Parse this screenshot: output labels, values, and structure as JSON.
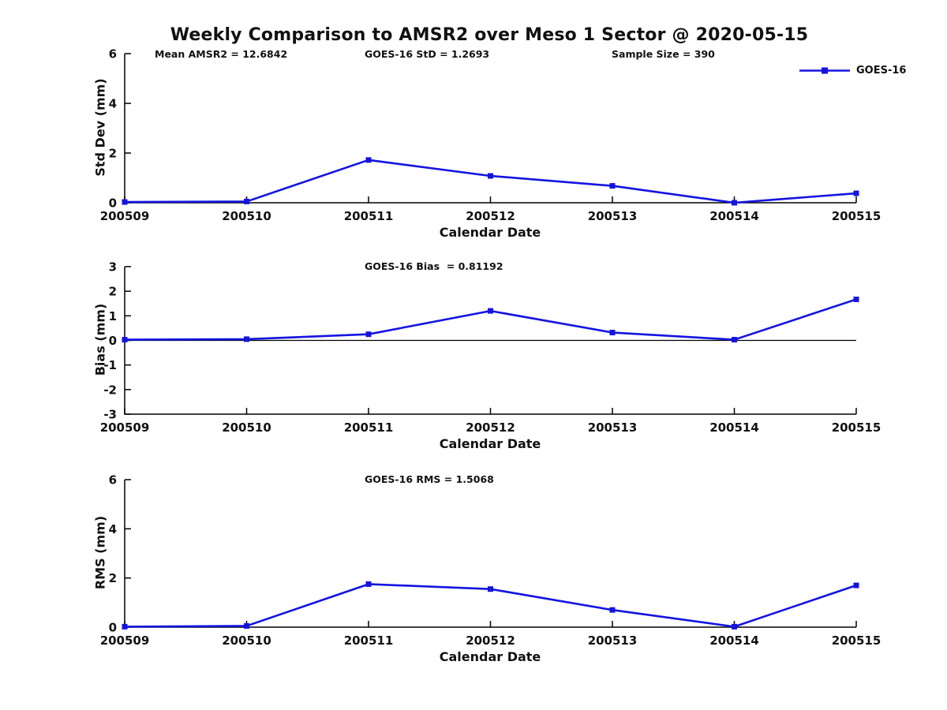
{
  "page": {
    "title": "Weekly Comparison to AMSR2 over Meso 1 Sector @ 2020-05-15"
  },
  "colors": {
    "series": "#1414e0",
    "axis": "#000000",
    "text": "#111111",
    "background": "#ffffff"
  },
  "chart_data": [
    {
      "type": "line",
      "ylabel": "Std Dev (mm)",
      "xlabel": "Calendar Date",
      "ylim": [
        0,
        6
      ],
      "yticks": [
        0,
        2,
        4,
        6
      ],
      "grid": false,
      "legend_position": "top-right",
      "categories": [
        "200509",
        "200510",
        "200511",
        "200512",
        "200513",
        "200514",
        "200515"
      ],
      "series": [
        {
          "name": "GOES-16",
          "values": [
            0.03,
            0.05,
            1.72,
            1.08,
            0.68,
            0.0,
            0.38
          ]
        }
      ],
      "annotations": [
        "Mean AMSR2 = 12.6842",
        "GOES-16 StD = 1.2693",
        "Sample Size = 390"
      ]
    },
    {
      "type": "line",
      "ylabel": "Bias (mm)",
      "xlabel": "Calendar Date",
      "ylim": [
        -3,
        3
      ],
      "yticks": [
        -3,
        -2,
        -1,
        0,
        1,
        2,
        3
      ],
      "grid": false,
      "zero_line": true,
      "categories": [
        "200509",
        "200510",
        "200511",
        "200512",
        "200513",
        "200514",
        "200515"
      ],
      "series": [
        {
          "name": "GOES-16",
          "values": [
            0.03,
            0.05,
            0.25,
            1.2,
            0.32,
            0.03,
            1.67
          ]
        }
      ],
      "annotations": [
        "GOES-16 Bias  = 0.81192"
      ]
    },
    {
      "type": "line",
      "ylabel": "RMS (mm)",
      "xlabel": "Calendar Date",
      "ylim": [
        0,
        6
      ],
      "yticks": [
        0,
        2,
        4,
        6
      ],
      "grid": false,
      "categories": [
        "200509",
        "200510",
        "200511",
        "200512",
        "200513",
        "200514",
        "200515"
      ],
      "series": [
        {
          "name": "GOES-16",
          "values": [
            0.02,
            0.05,
            1.75,
            1.55,
            0.7,
            0.02,
            1.7
          ]
        }
      ],
      "annotations": [
        "GOES-16 RMS = 1.5068"
      ]
    }
  ]
}
